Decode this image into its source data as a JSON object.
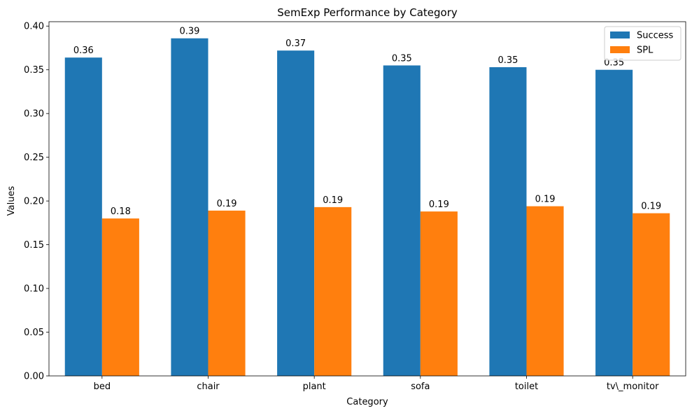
{
  "chart_data": {
    "type": "bar",
    "title": "SemExp Performance by Category",
    "xlabel": "Category",
    "ylabel": "Values",
    "categories": [
      "bed",
      "chair",
      "plant",
      "sofa",
      "toilet",
      "tv\\_monitor"
    ],
    "series": [
      {
        "name": "Success",
        "color": "#1f77b4",
        "values": [
          0.364,
          0.386,
          0.372,
          0.355,
          0.353,
          0.35
        ],
        "labels": [
          "0.36",
          "0.39",
          "0.37",
          "0.35",
          "0.35",
          "0.35"
        ]
      },
      {
        "name": "SPL",
        "color": "#ff7f0e",
        "values": [
          0.18,
          0.189,
          0.193,
          0.188,
          0.194,
          0.186
        ],
        "labels": [
          "0.18",
          "0.19",
          "0.19",
          "0.19",
          "0.19",
          "0.19"
        ]
      }
    ],
    "ylim": [
      0,
      0.405
    ],
    "yticks": [
      "0.00",
      "0.05",
      "0.10",
      "0.15",
      "0.20",
      "0.25",
      "0.30",
      "0.35",
      "0.40"
    ],
    "grid": false,
    "legend": "top-right"
  }
}
